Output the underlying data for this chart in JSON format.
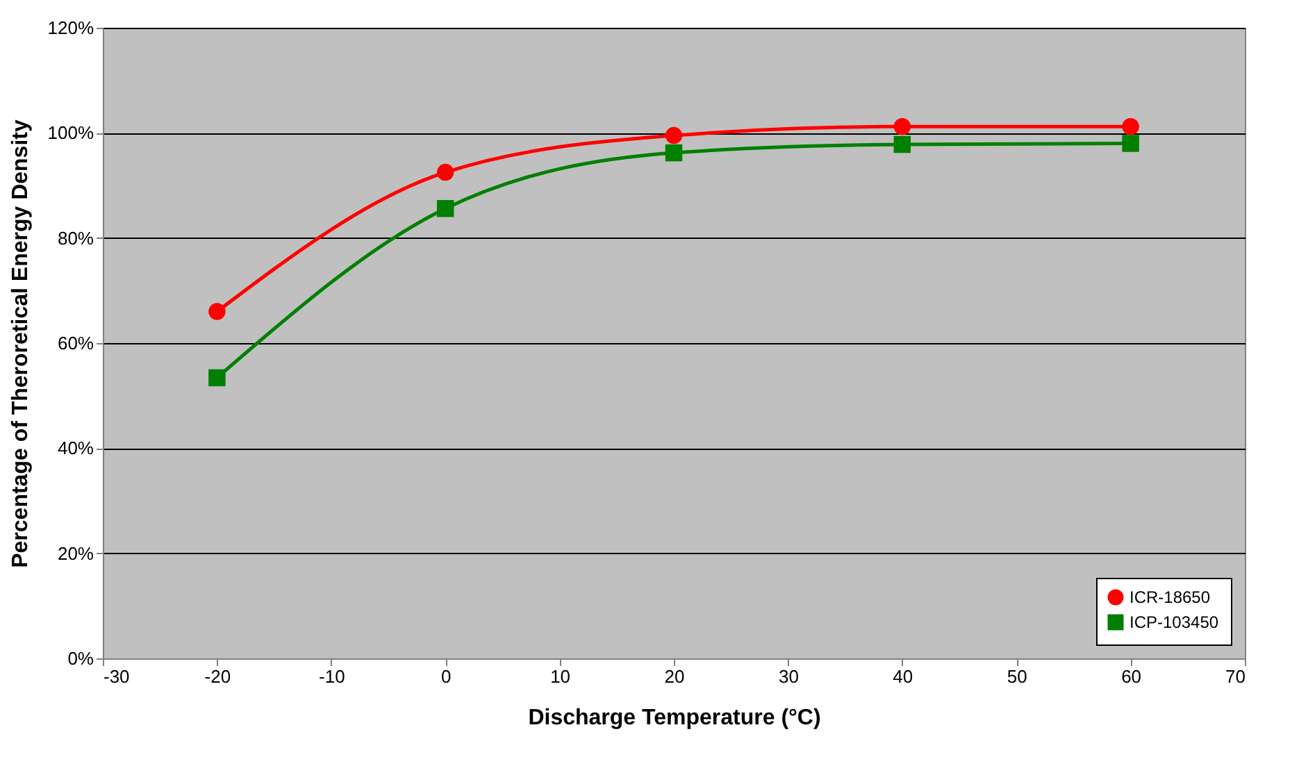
{
  "chart_data": {
    "type": "line",
    "xlabel": "Discharge Temperature (°C)",
    "ylabel": "Percentage of Theroretical Energy Density",
    "x": [
      -20,
      0,
      20,
      40,
      60
    ],
    "series": [
      {
        "name": "ICR-18650",
        "color": "#ff0000",
        "marker": "circle",
        "values": [
          66,
          92.5,
          99.5,
          101.2,
          101.2
        ]
      },
      {
        "name": "ICP-103450",
        "color": "#008000",
        "marker": "square",
        "values": [
          53.4,
          85.6,
          96.2,
          97.8,
          98
        ]
      }
    ],
    "xlim": [
      -30,
      70
    ],
    "xticks": [
      -30,
      -20,
      -10,
      0,
      10,
      20,
      30,
      40,
      50,
      60,
      70
    ],
    "ylim": [
      0,
      120
    ],
    "yticks": [
      {
        "value": 0,
        "label": "0%"
      },
      {
        "value": 20,
        "label": "20%"
      },
      {
        "value": 40,
        "label": "40%"
      },
      {
        "value": 60,
        "label": "60%"
      },
      {
        "value": 80,
        "label": "80%"
      },
      {
        "value": 100,
        "label": "100%"
      },
      {
        "value": 120,
        "label": "120%"
      }
    ],
    "grid": "y",
    "legend": "bottom right",
    "line_style": "solid"
  }
}
